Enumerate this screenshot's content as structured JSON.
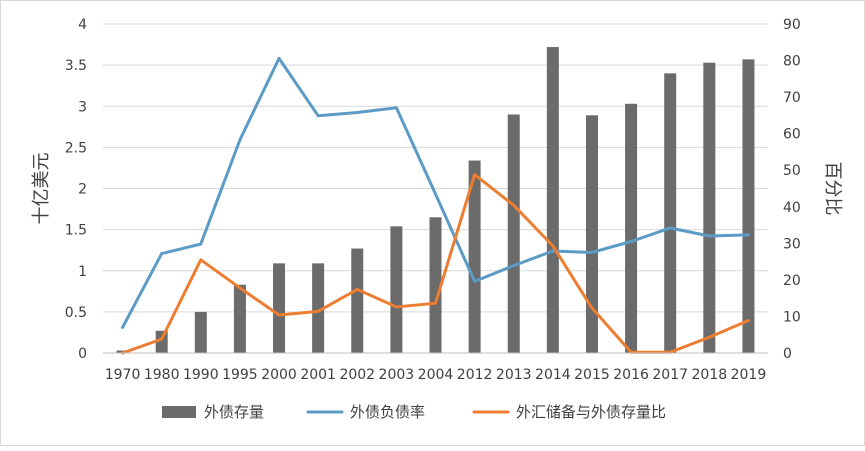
{
  "chart_data": {
    "type": "bar+line",
    "categories": [
      "1970",
      "1980",
      "1990",
      "1995",
      "2000",
      "2001",
      "2002",
      "2003",
      "2004",
      "2012",
      "2013",
      "2014",
      "2015",
      "2016",
      "2017",
      "2018",
      "2019"
    ],
    "ylabel_left": "十亿美元",
    "ylabel_right": "百分比",
    "ylim_left": [
      0,
      4
    ],
    "ylim_right": [
      0,
      90
    ],
    "yticks_left": [
      "0",
      "0.5",
      "1",
      "1.5",
      "2",
      "2.5",
      "3",
      "3.5",
      "4"
    ],
    "yticks_right": [
      "0",
      "10",
      "20",
      "30",
      "40",
      "50",
      "60",
      "70",
      "80",
      "90"
    ],
    "grid": true,
    "legend_position": "bottom",
    "series": [
      {
        "name": "外债存量",
        "kind": "bar",
        "axis": "left",
        "color": "#6b6b6b",
        "values": [
          0.03,
          0.27,
          0.5,
          0.83,
          1.09,
          1.09,
          1.27,
          1.54,
          1.65,
          2.34,
          2.9,
          3.72,
          2.89,
          3.03,
          3.4,
          3.53,
          3.57
        ]
      },
      {
        "name": "外债负债率",
        "kind": "line",
        "axis": "right",
        "color": "#5b9bc5",
        "values": [
          7.0,
          27.2,
          29.8,
          58.3,
          80.6,
          64.9,
          65.8,
          67.1,
          43.5,
          19.6,
          23.9,
          27.9,
          27.5,
          30.5,
          34.2,
          32.0,
          32.3
        ]
      },
      {
        "name": "外汇储备与外债存量比",
        "kind": "line",
        "axis": "right",
        "color": "#ed7d31",
        "values": [
          0.0,
          3.8,
          25.5,
          17.8,
          10.4,
          11.4,
          17.4,
          12.6,
          13.6,
          48.8,
          40.4,
          29.3,
          12.3,
          0.2,
          0.2,
          4.3,
          8.9
        ]
      }
    ]
  }
}
